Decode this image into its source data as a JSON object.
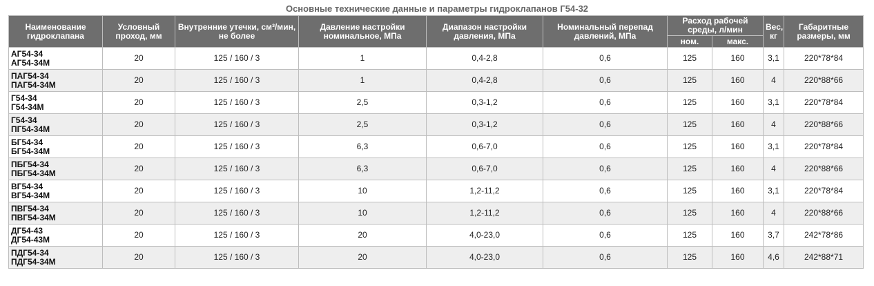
{
  "title": "Основные технические данные и параметры гидроклапанов Г54-32",
  "table": {
    "columns": [
      "Наименование гидроклапана",
      "Условный проход, мм",
      "Внутренние утечки, см³/мин, не более",
      "Давление настройки номинальное, МПа",
      "Диапазон настройки давления, МПа",
      "Номинальный перепад давлений, МПа",
      "Расход рабочей среды, л/мин",
      "Вес, кг",
      "Габаритные размеры, мм"
    ],
    "subcolumns": [
      "ном.",
      "макс."
    ],
    "rows": [
      [
        [
          "АГ54-34",
          "АГ54-34М"
        ],
        "20",
        "125 / 160 / 3",
        "1",
        "0,4-2,8",
        "0,6",
        "125",
        "160",
        "3,1",
        "220*78*84"
      ],
      [
        [
          "ПАГ54-34",
          "ПАГ54-34М"
        ],
        "20",
        "125 / 160 / 3",
        "1",
        "0,4-2,8",
        "0,6",
        "125",
        "160",
        "4",
        "220*88*66"
      ],
      [
        [
          "Г54-34",
          "Г54-34М"
        ],
        "20",
        "125 / 160 / 3",
        "2,5",
        "0,3-1,2",
        "0,6",
        "125",
        "160",
        "3,1",
        "220*78*84"
      ],
      [
        [
          "Г54-34",
          "ПГ54-34М"
        ],
        "20",
        "125 / 160 / 3",
        "2,5",
        "0,3-1,2",
        "0,6",
        "125",
        "160",
        "4",
        "220*88*66"
      ],
      [
        [
          "БГ54-34",
          "БГ54-34М"
        ],
        "20",
        "125 / 160 / 3",
        "6,3",
        "0,6-7,0",
        "0,6",
        "125",
        "160",
        "3,1",
        "220*78*84"
      ],
      [
        [
          "ПБГ54-34",
          "ПБГ54-34М"
        ],
        "20",
        "125 / 160 / 3",
        "6,3",
        "0,6-7,0",
        "0,6",
        "125",
        "160",
        "4",
        "220*88*66"
      ],
      [
        [
          "ВГ54-34",
          "ВГ54-34М"
        ],
        "20",
        "125 / 160 / 3",
        "10",
        "1,2-11,2",
        "0,6",
        "125",
        "160",
        "3,1",
        "220*78*84"
      ],
      [
        [
          "ПВГ54-34",
          "ПВГ54-34М"
        ],
        "20",
        "125 / 160 / 3",
        "10",
        "1,2-11,2",
        "0,6",
        "125",
        "160",
        "4",
        "220*88*66"
      ],
      [
        [
          "ДГ54-43",
          "ДГ54-43М"
        ],
        "20",
        "125 / 160 / 3",
        "20",
        "4,0-23,0",
        "0,6",
        "125",
        "160",
        "3,7",
        "242*78*86"
      ],
      [
        [
          "ПДГ54-34",
          "ПДГ54-34М"
        ],
        "20",
        "125 / 160 / 3",
        "20",
        "4,0-23,0",
        "0,6",
        "125",
        "160",
        "4,6",
        "242*88*71"
      ]
    ]
  }
}
